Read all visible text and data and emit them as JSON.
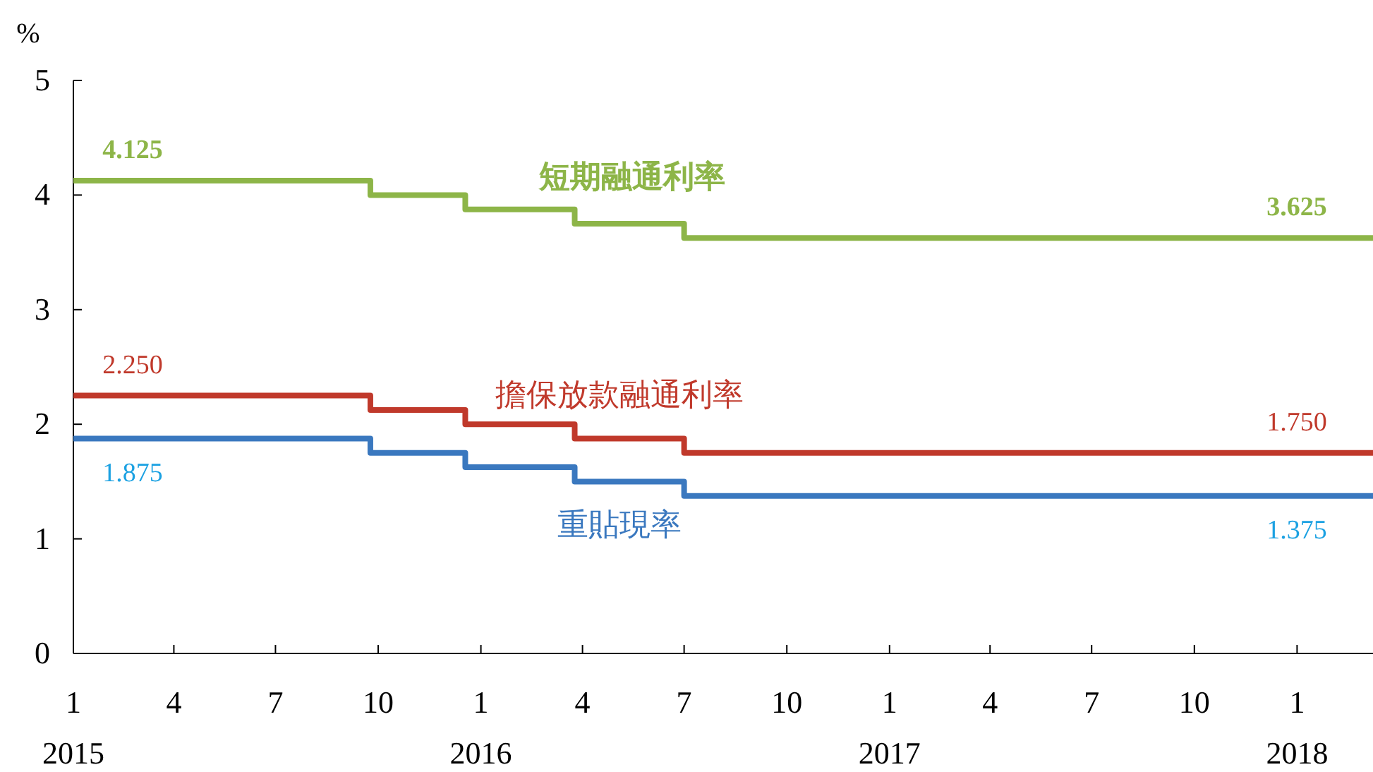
{
  "chart_data": {
    "type": "step",
    "ylabel": "%",
    "xlim": [
      "2015-01-01",
      "2018-03-10"
    ],
    "ylim": [
      0,
      5
    ],
    "yticks": [
      0,
      1,
      2,
      3,
      4,
      5
    ],
    "xticks": [
      {
        "value": "2015-01-01",
        "label": "1\n2015"
      },
      {
        "value": "2015-04-01",
        "label": "4"
      },
      {
        "value": "2015-07-01",
        "label": "7"
      },
      {
        "value": "2015-10-01",
        "label": "10"
      },
      {
        "value": "2016-01-01",
        "label": "1\n2016"
      },
      {
        "value": "2016-04-01",
        "label": "4"
      },
      {
        "value": "2016-07-01",
        "label": "7"
      },
      {
        "value": "2016-10-01",
        "label": "10"
      },
      {
        "value": "2017-01-01",
        "label": "1\n2017"
      },
      {
        "value": "2017-04-01",
        "label": "4"
      },
      {
        "value": "2017-07-01",
        "label": "7"
      },
      {
        "value": "2017-10-01",
        "label": "10"
      },
      {
        "value": "2018-01-01",
        "label": "1\n2018"
      }
    ],
    "x": [
      "2015-01-01",
      "2015-09-24",
      "2015-12-18",
      "2016-03-25",
      "2016-07-01",
      "2018-03-10"
    ],
    "series": [
      {
        "name": "短期融通利率",
        "color": "#8db548",
        "values": [
          4.125,
          4.0,
          3.875,
          3.75,
          3.625,
          3.625
        ]
      },
      {
        "name": "擔保放款融通利率",
        "color": "#c0392b",
        "values": [
          2.25,
          2.125,
          2.0,
          1.875,
          1.75,
          1.75
        ]
      },
      {
        "name": "重貼現率",
        "color": "#3a78bf",
        "values": [
          1.875,
          1.75,
          1.625,
          1.5,
          1.375,
          1.375
        ]
      }
    ],
    "annotations": [
      {
        "text": "4.125",
        "x": "2015-01-01",
        "y": 4.125
      },
      {
        "text": "3.625",
        "x": "2017-11-20",
        "y": 3.625
      },
      {
        "text": "2.250",
        "x": "2015-01-01",
        "y": 2.25
      },
      {
        "text": "1.750",
        "x": "2017-11-20",
        "y": 1.75
      },
      {
        "text": "1.875",
        "x": "2015-01-01",
        "y": 1.875
      },
      {
        "text": "1.375",
        "x": "2017-11-20",
        "y": 1.375
      }
    ],
    "grid": false,
    "line_style": "solid"
  }
}
